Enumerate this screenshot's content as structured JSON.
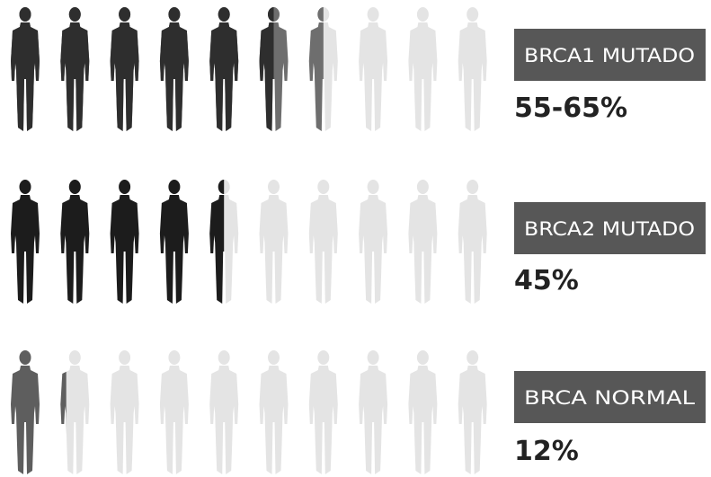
{
  "chart_data": [
    {
      "type": "pictogram",
      "category": "BRCA1 MUTADO",
      "values": [
        55,
        65
      ],
      "value_label": "55-65%",
      "colors": [
        "#2e2e2e",
        "#6e6e6e"
      ],
      "empty_color": "#e4e4e4",
      "xlim": [
        0,
        100
      ],
      "icons": 10
    },
    {
      "type": "pictogram",
      "category": "BRCA2 MUTADO",
      "values": [
        45
      ],
      "value_label": "45%",
      "colors": [
        "#1c1c1c"
      ],
      "empty_color": "#e4e4e4",
      "xlim": [
        0,
        100
      ],
      "icons": 10
    },
    {
      "type": "pictogram",
      "category": "BRCA NORMAL",
      "values": [
        12
      ],
      "value_label": "12%",
      "colors": [
        "#5e5e5e"
      ],
      "empty_color": "#e4e4e4",
      "xlim": [
        0,
        100
      ],
      "icons": 10
    }
  ]
}
